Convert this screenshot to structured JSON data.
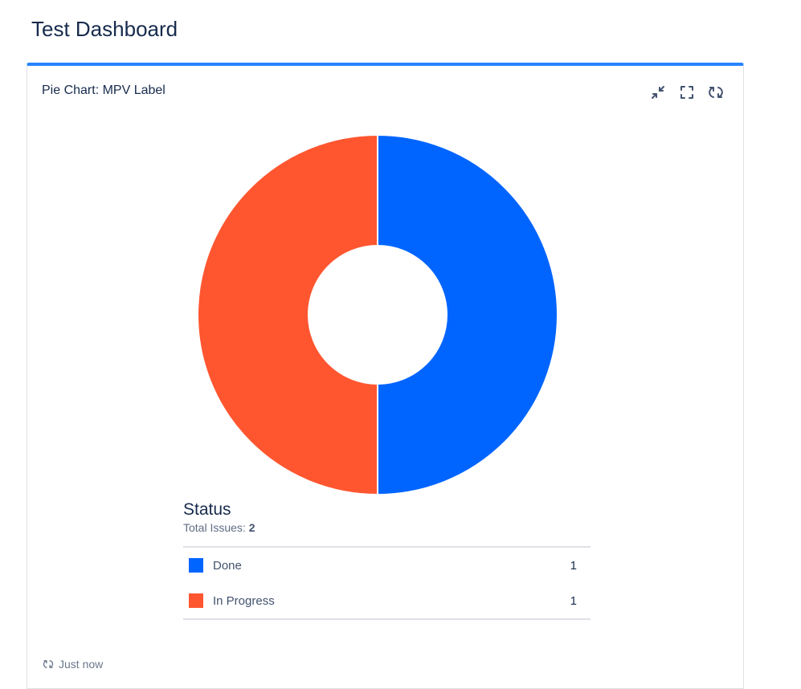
{
  "page": {
    "title": "Test Dashboard"
  },
  "gadget": {
    "title": "Pie Chart: MPV Label",
    "actions": [
      "minimize-icon",
      "fullscreen-icon",
      "refresh-icon"
    ],
    "accent_color": "#2684ff",
    "footer": {
      "refresh_label": "Just now",
      "icon": "refresh-icon"
    }
  },
  "legend": {
    "title": "Status",
    "total_label": "Total Issues:",
    "total_value": "2",
    "items": [
      {
        "label": "Done",
        "count": "1",
        "color": "#0065ff"
      },
      {
        "label": "In Progress",
        "count": "1",
        "color": "#ff5630"
      }
    ]
  },
  "chart_data": {
    "type": "pie",
    "style": "donut",
    "categories": [
      "Done",
      "In Progress"
    ],
    "values": [
      1,
      1
    ],
    "colors": [
      "#0065ff",
      "#ff5630"
    ],
    "title": "Status"
  }
}
